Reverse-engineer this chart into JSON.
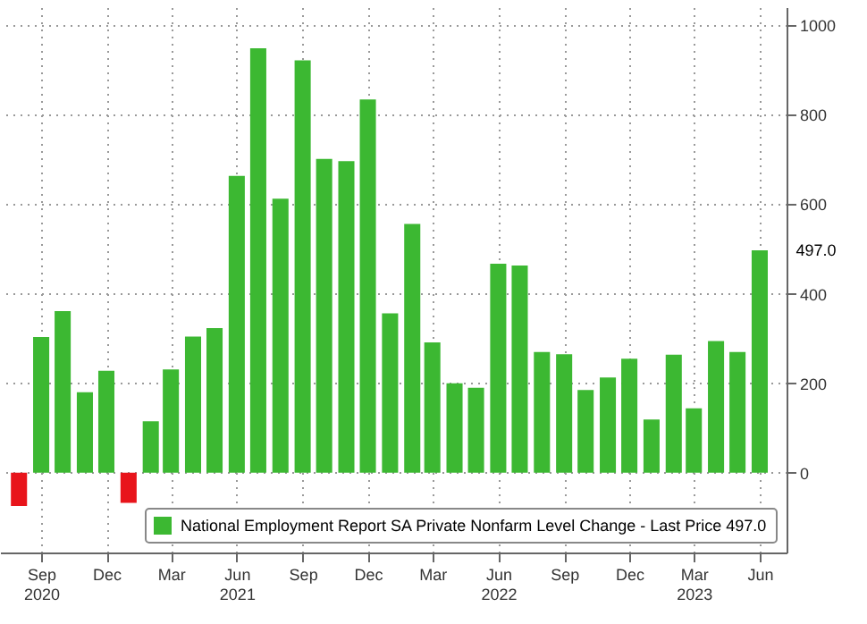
{
  "chart_data": {
    "type": "bar",
    "x": [
      "2020-08",
      "2020-09",
      "2020-10",
      "2020-11",
      "2020-12",
      "2021-01",
      "2021-02",
      "2021-03",
      "2021-04",
      "2021-05",
      "2021-06",
      "2021-07",
      "2021-08",
      "2021-09",
      "2021-10",
      "2021-11",
      "2021-12",
      "2022-01",
      "2022-02",
      "2022-03",
      "2022-04",
      "2022-05",
      "2022-06",
      "2022-07",
      "2022-08",
      "2022-09",
      "2022-10",
      "2022-11",
      "2022-12",
      "2023-01",
      "2023-02",
      "2023-03",
      "2023-04",
      "2023-05",
      "2023-06"
    ],
    "series": [
      {
        "name": "National Employment Report SA Private Nonfarm Level Change - Last Price 497.0",
        "color": "#3cb832",
        "values": [
          -74,
          303,
          361,
          180,
          228,
          -67,
          115,
          231,
          304,
          323,
          663,
          948,
          612,
          921,
          701,
          696,
          834,
          356,
          556,
          291,
          200,
          190,
          467,
          463,
          270,
          265,
          185,
          213,
          255,
          119,
          264,
          144,
          294,
          270,
          497
        ],
        "colors": [
          "#e8141b",
          "#3cb832",
          "#3cb832",
          "#3cb832",
          "#3cb832",
          "#e8141b",
          "#3cb832",
          "#3cb832",
          "#3cb832",
          "#3cb832",
          "#3cb832",
          "#3cb832",
          "#3cb832",
          "#3cb832",
          "#3cb832",
          "#3cb832",
          "#3cb832",
          "#3cb832",
          "#3cb832",
          "#3cb832",
          "#3cb832",
          "#3cb832",
          "#3cb832",
          "#3cb832",
          "#3cb832",
          "#3cb832",
          "#3cb832",
          "#3cb832",
          "#3cb832",
          "#3cb832",
          "#3cb832",
          "#3cb832",
          "#3cb832",
          "#3cb832",
          "#3cb832"
        ]
      }
    ],
    "xlim": [
      "2020-07-18",
      "2023-06-26"
    ],
    "xticks": [
      {
        "value": "2020-09",
        "label": "Sep\n2020"
      },
      {
        "value": "2020-12",
        "label": "Dec"
      },
      {
        "value": "2021-03",
        "label": "Mar"
      },
      {
        "value": "2021-06",
        "label": "Jun\n2021"
      },
      {
        "value": "2021-09",
        "label": "Sep"
      },
      {
        "value": "2021-12",
        "label": "Dec"
      },
      {
        "value": "2022-03",
        "label": "Mar"
      },
      {
        "value": "2022-06",
        "label": "Jun\n2022"
      },
      {
        "value": "2022-09",
        "label": "Sep"
      },
      {
        "value": "2022-12",
        "label": "Dec"
      },
      {
        "value": "2023-03",
        "label": "Mar\n2023"
      },
      {
        "value": "2023-06",
        "label": "Jun"
      }
    ],
    "ylim": [
      -178,
      1040
    ],
    "yticks": [
      0,
      200,
      400,
      600,
      800,
      1000
    ],
    "annotations": [
      {
        "text": "497.0",
        "x": "2023-06",
        "y": 497
      }
    ],
    "grid": true,
    "legend": "bottom right"
  }
}
